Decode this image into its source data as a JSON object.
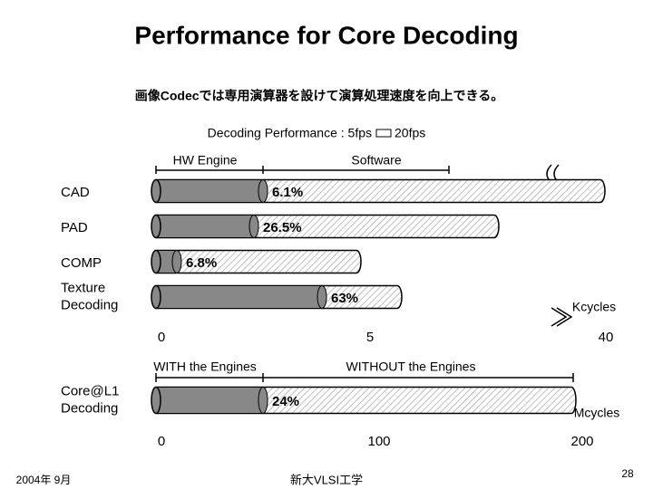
{
  "title": "Performance for Core Decoding",
  "subtitle": "画像Codecでは専用演算器を設けて演算処理速度を向上できる。",
  "performance_note": {
    "left": "Decoding Performance : 5fps",
    "right": "20fps"
  },
  "upper_chart": {
    "hw_label": "HW Engine",
    "sw_label": "Software",
    "rows": [
      {
        "label": [
          "CAD"
        ],
        "percent": "6.1%"
      },
      {
        "label": [
          "PAD"
        ],
        "percent": "26.5%"
      },
      {
        "label": [
          "COMP"
        ],
        "percent": "6.8%"
      },
      {
        "label": [
          "Texture",
          "Decoding"
        ],
        "percent": "63%"
      }
    ],
    "ticks": [
      "0",
      "5",
      "40"
    ],
    "unit": "Kcycles"
  },
  "lower_chart": {
    "with_label": "WITH the Engines",
    "without_label": "WITHOUT the Engines",
    "rows": [
      {
        "label": [
          "Core@L1",
          "Decoding"
        ],
        "percent": "24%"
      }
    ],
    "ticks": [
      "0",
      "100",
      "200"
    ],
    "unit": "Mcycles"
  },
  "footer": {
    "date": "2004年  9月",
    "org": "新大VLSI工学",
    "page": "28"
  }
}
